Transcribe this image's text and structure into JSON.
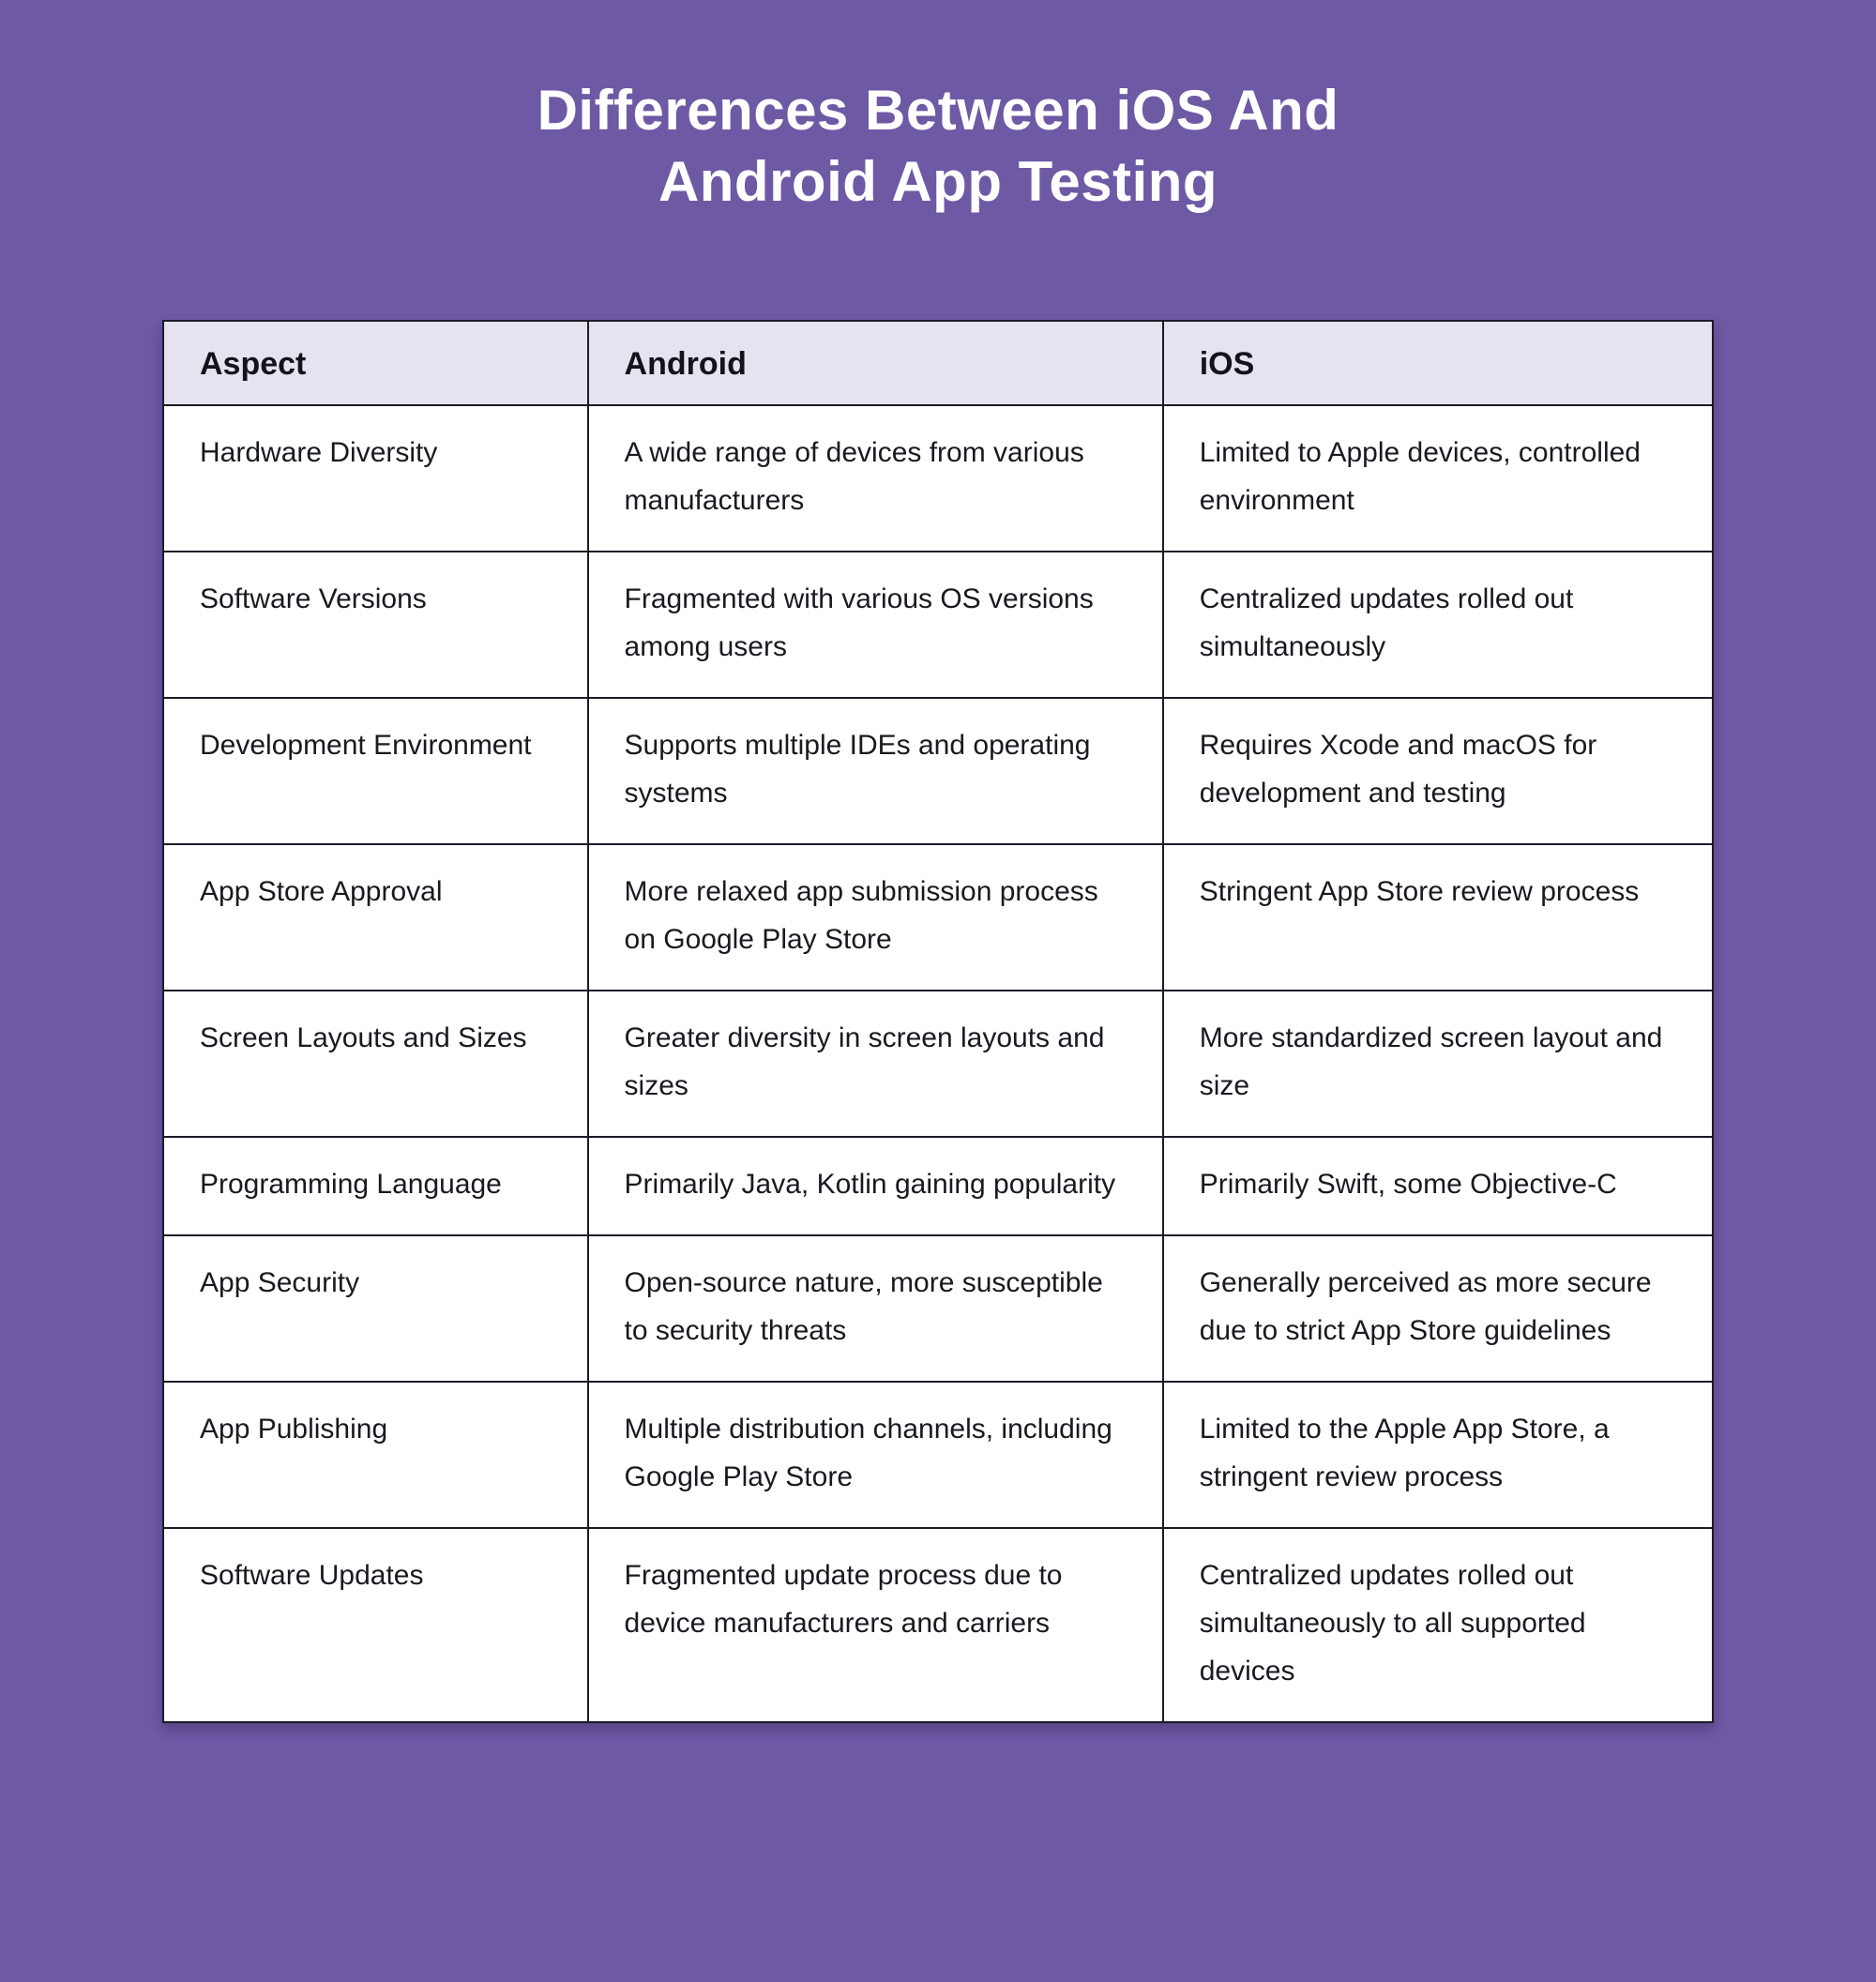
{
  "page": {
    "background_color": "#6d59a4",
    "title_color": "#ffffff",
    "title_lines": [
      "Differences Between iOS And",
      "Android App Testing"
    ]
  },
  "table": {
    "header_background": "#e6e2f0",
    "border_color": "#1c1b26",
    "body_background": "#ffffff",
    "headers": [
      "Aspect",
      "Android",
      "iOS"
    ],
    "rows": [
      {
        "aspect": "Hardware Diversity",
        "android": "A wide range of devices from various manufacturers",
        "ios": "Limited to Apple devices, controlled environment"
      },
      {
        "aspect": "Software Versions",
        "android": "Fragmented with various OS versions among users",
        "ios": "Centralized updates rolled out simultaneously"
      },
      {
        "aspect": "Development Environment",
        "android": "Supports multiple IDEs and operating systems",
        "ios": "Requires Xcode and macOS for development and testing"
      },
      {
        "aspect": "App Store Approval",
        "android": "More relaxed app submission process on Google Play Store",
        "ios": "Stringent App Store review process"
      },
      {
        "aspect": "Screen Layouts and Sizes",
        "android": "Greater diversity in screen layouts and sizes",
        "ios": "More standardized screen layout and size"
      },
      {
        "aspect": "Programming Language",
        "android": "Primarily Java, Kotlin gaining popularity",
        "ios": "Primarily Swift, some Objective-C"
      },
      {
        "aspect": "App Security",
        "android": "Open-source nature, more susceptible to security threats",
        "ios": "Generally perceived as more secure due to strict App Store guidelines"
      },
      {
        "aspect": "App Publishing",
        "android": "Multiple distribution channels, including Google Play Store",
        "ios": "Limited to the Apple App Store, a stringent review process"
      },
      {
        "aspect": "Software Updates",
        "android": "Fragmented update process due to device manufacturers and carriers",
        "ios": "Centralized updates rolled out simultaneously to all supported devices"
      }
    ]
  }
}
